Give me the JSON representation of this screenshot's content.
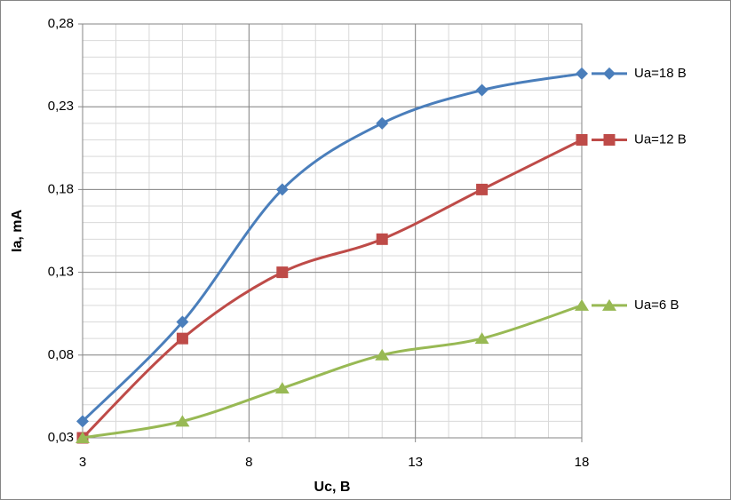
{
  "chart_data": {
    "type": "line",
    "x_label": "Uc, B",
    "y_label": "Ia, mA",
    "x": [
      3,
      6,
      9,
      12,
      15,
      18
    ],
    "series": [
      {
        "name": "Ua=18 B",
        "color": "#4a7ebb",
        "marker": "diamond",
        "values": [
          0.04,
          0.1,
          0.18,
          0.22,
          0.24,
          0.25
        ]
      },
      {
        "name": "Ua=12 B",
        "color": "#be4b48",
        "marker": "square",
        "values": [
          0.03,
          0.09,
          0.13,
          0.15,
          0.18,
          0.21
        ]
      },
      {
        "name": "Ua=6 B",
        "color": "#98b954",
        "marker": "triangle",
        "values": [
          0.03,
          0.04,
          0.06,
          0.08,
          0.09,
          0.11
        ]
      }
    ],
    "xlim": [
      3,
      18
    ],
    "xticks": [
      3,
      8,
      13,
      18
    ],
    "ylim": [
      0.03,
      0.28
    ],
    "yticks": [
      {
        "value": 0.03,
        "label": "0,03"
      },
      {
        "value": 0.08,
        "label": "0,08"
      },
      {
        "value": 0.13,
        "label": "0,13"
      },
      {
        "value": 0.18,
        "label": "0,18"
      },
      {
        "value": 0.23,
        "label": "0,23"
      },
      {
        "value": 0.28,
        "label": "0,28"
      }
    ],
    "grid": true,
    "minor_grid": {
      "x": 1,
      "y": 0.01
    },
    "smooth": true,
    "legend": "right"
  }
}
